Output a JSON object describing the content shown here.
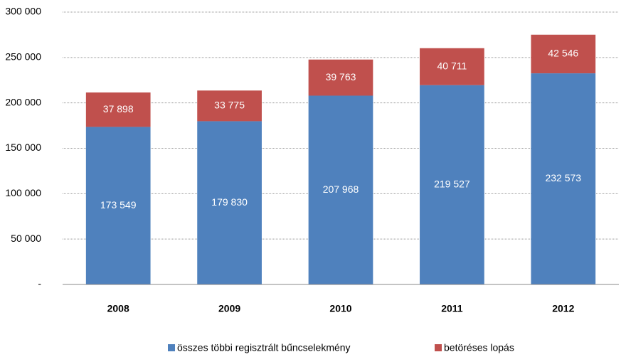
{
  "chart_data": {
    "type": "stacked_bar",
    "categories": [
      "2008",
      "2009",
      "2010",
      "2011",
      "2012"
    ],
    "series": [
      {
        "name": "összes többi regisztrált bűncselekmény",
        "color": "#4f81bd",
        "values": [
          173549,
          179830,
          207968,
          219527,
          232573
        ],
        "value_labels": [
          "173 549",
          "179 830",
          "207 968",
          "219 527",
          "232 573"
        ]
      },
      {
        "name": "betöréses lopás",
        "color": "#c0504d",
        "values": [
          37898,
          33775,
          39763,
          40711,
          42546
        ],
        "value_labels": [
          "37 898",
          "33 775",
          "39 763",
          "40 711",
          "42 546"
        ]
      }
    ],
    "ylim": [
      0,
      300000
    ],
    "yticks": [
      {
        "value": 0,
        "label": "-"
      },
      {
        "value": 50000,
        "label": "50 000"
      },
      {
        "value": 100000,
        "label": "100 000"
      },
      {
        "value": 150000,
        "label": "150 000"
      },
      {
        "value": 200000,
        "label": "200 000"
      },
      {
        "value": 250000,
        "label": "250 000"
      },
      {
        "value": 300000,
        "label": "300 000"
      }
    ],
    "grid": true,
    "legend": "bottom"
  }
}
